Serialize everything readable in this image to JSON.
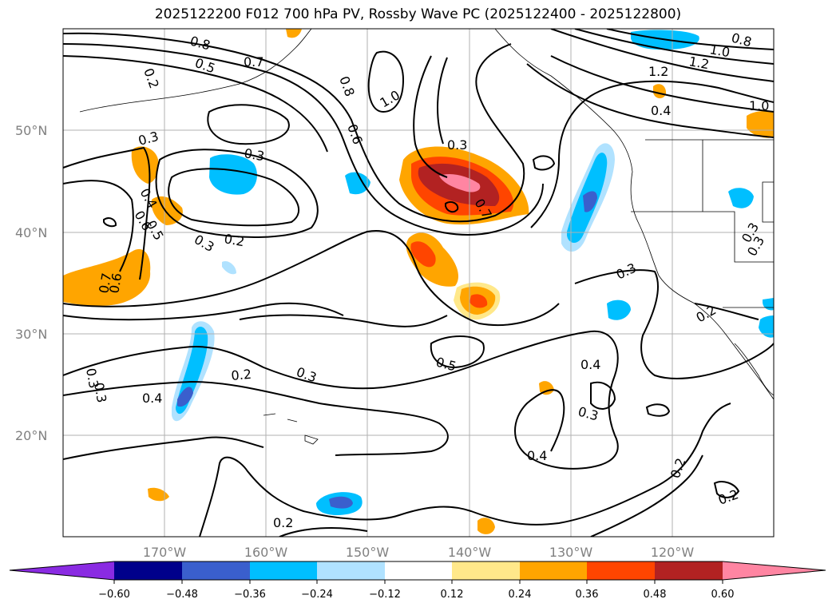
{
  "title": "2025122200 F012 700 hPa PV, Rossby Wave PC (2025122400 - 2025122800)",
  "map": {
    "lat_labels": [
      "50°N",
      "40°N",
      "30°N",
      "20°N"
    ],
    "lon_labels": [
      "170°W",
      "160°W",
      "150°W",
      "140°W",
      "130°W",
      "120°W"
    ],
    "contour_labels": [
      "0.8",
      "0.5",
      "0.7",
      "0.2",
      "0.8",
      "0.6",
      "1.0",
      "0.3",
      "0.3",
      "0.3",
      "0.4",
      "0.6",
      "0.5",
      "0.2",
      "0.3",
      "0.7",
      "0.6",
      "0.3",
      "0.5",
      "0.2",
      "0.3",
      "0.4",
      "0.4",
      "0.3",
      "0.4",
      "0.2",
      "0.2",
      "0.2",
      "0.2",
      "0.3",
      "0.3",
      "0.8",
      "1.0",
      "1.2",
      "1.2",
      "0.4",
      "1.0",
      "0.7",
      "0.3",
      "0.3"
    ]
  },
  "colorbar": {
    "colors": [
      "#8a2be2",
      "#00008b",
      "#3a5fcd",
      "#00bfff",
      "#b0e2ff",
      "#ffffff",
      "#ffe88a",
      "#ffa500",
      "#ff4500",
      "#b22222",
      "#ff85a2"
    ],
    "tick_labels": [
      "−0.60",
      "−0.48",
      "−0.36",
      "−0.24",
      "−0.12",
      "0.12",
      "0.24",
      "0.36",
      "0.48",
      "0.60"
    ]
  }
}
